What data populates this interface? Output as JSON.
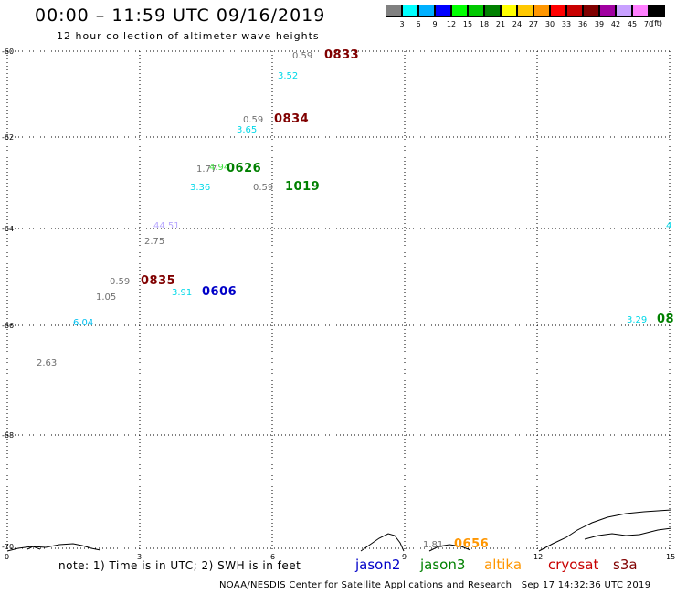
{
  "header": {
    "title": "00:00 – 11:59 UTC 09/16/2019",
    "subtitle": "12 hour collection of altimeter wave heights"
  },
  "legend": {
    "colors": [
      "#808080",
      "#00ffff",
      "#00b0ff",
      "#0000ff",
      "#00ff00",
      "#00c800",
      "#008000",
      "#ffff00",
      "#ffc800",
      "#ff9600",
      "#ff0000",
      "#c80000",
      "#800000",
      "#a000a0",
      "#c8a0ff",
      "#ff80ff",
      "#000000"
    ],
    "labels": [
      "3",
      "6",
      "9",
      "12",
      "15",
      "18",
      "21",
      "24",
      "27",
      "30",
      "33",
      "36",
      "39",
      "42",
      "45",
      "70"
    ],
    "unit": "(ft)"
  },
  "axes": {
    "y_labels": [
      "-60",
      "-62",
      "-64",
      "-66",
      "-68",
      "-70"
    ],
    "x_labels": [
      "0",
      "3",
      "6",
      "9",
      "12",
      "15"
    ]
  },
  "observations": [
    {
      "text": "0.59",
      "color": "#707070"
    },
    {
      "text": "3.52",
      "color": "#00d8e8"
    },
    {
      "text": "0.59",
      "color": "#707070"
    },
    {
      "text": "3.65",
      "color": "#00d8e8"
    },
    {
      "text": "1.77",
      "color": "#707070"
    },
    {
      "text": "4.94",
      "color": "#40e040"
    },
    {
      "text": "3.36",
      "color": "#00d8e8"
    },
    {
      "text": "0.59",
      "color": "#707070"
    },
    {
      "text": "44.51",
      "color": "#b8a8ff"
    },
    {
      "text": "2.75",
      "color": "#707070"
    },
    {
      "text": "0.59",
      "color": "#707070"
    },
    {
      "text": "3.91",
      "color": "#00d8e8"
    },
    {
      "text": "1.05",
      "color": "#707070"
    },
    {
      "text": "6.04",
      "color": "#00c0f0"
    },
    {
      "text": "2.63",
      "color": "#707070"
    },
    {
      "text": "3.29",
      "color": "#00d8e8"
    },
    {
      "text": "1.81",
      "color": "#707070"
    },
    {
      "text": "4",
      "color": "#00d8e8"
    }
  ],
  "passes": [
    {
      "text": "0833",
      "color": "#800000"
    },
    {
      "text": "0834",
      "color": "#800000"
    },
    {
      "text": "0626",
      "color": "#008000"
    },
    {
      "text": "1019",
      "color": "#008000"
    },
    {
      "text": "0835",
      "color": "#800000"
    },
    {
      "text": "0606",
      "color": "#0000c8"
    },
    {
      "text": "08",
      "color": "#008000"
    },
    {
      "text": "0656",
      "color": "#ff9600"
    }
  ],
  "footer": {
    "note": "note: 1) Time is in UTC; 2) SWH is in feet",
    "satellites": [
      {
        "name": "jason2",
        "color": "#0000c8"
      },
      {
        "name": "jason3",
        "color": "#008000"
      },
      {
        "name": "altika",
        "color": "#ff9600"
      },
      {
        "name": "cryosat",
        "color": "#c80000"
      },
      {
        "name": "s3a",
        "color": "#800000"
      }
    ],
    "credit": "NOAA/NESDIS Center for Satellite Applications and Research",
    "timestamp": "Sep 17 14:32:36 UTC 2019"
  }
}
